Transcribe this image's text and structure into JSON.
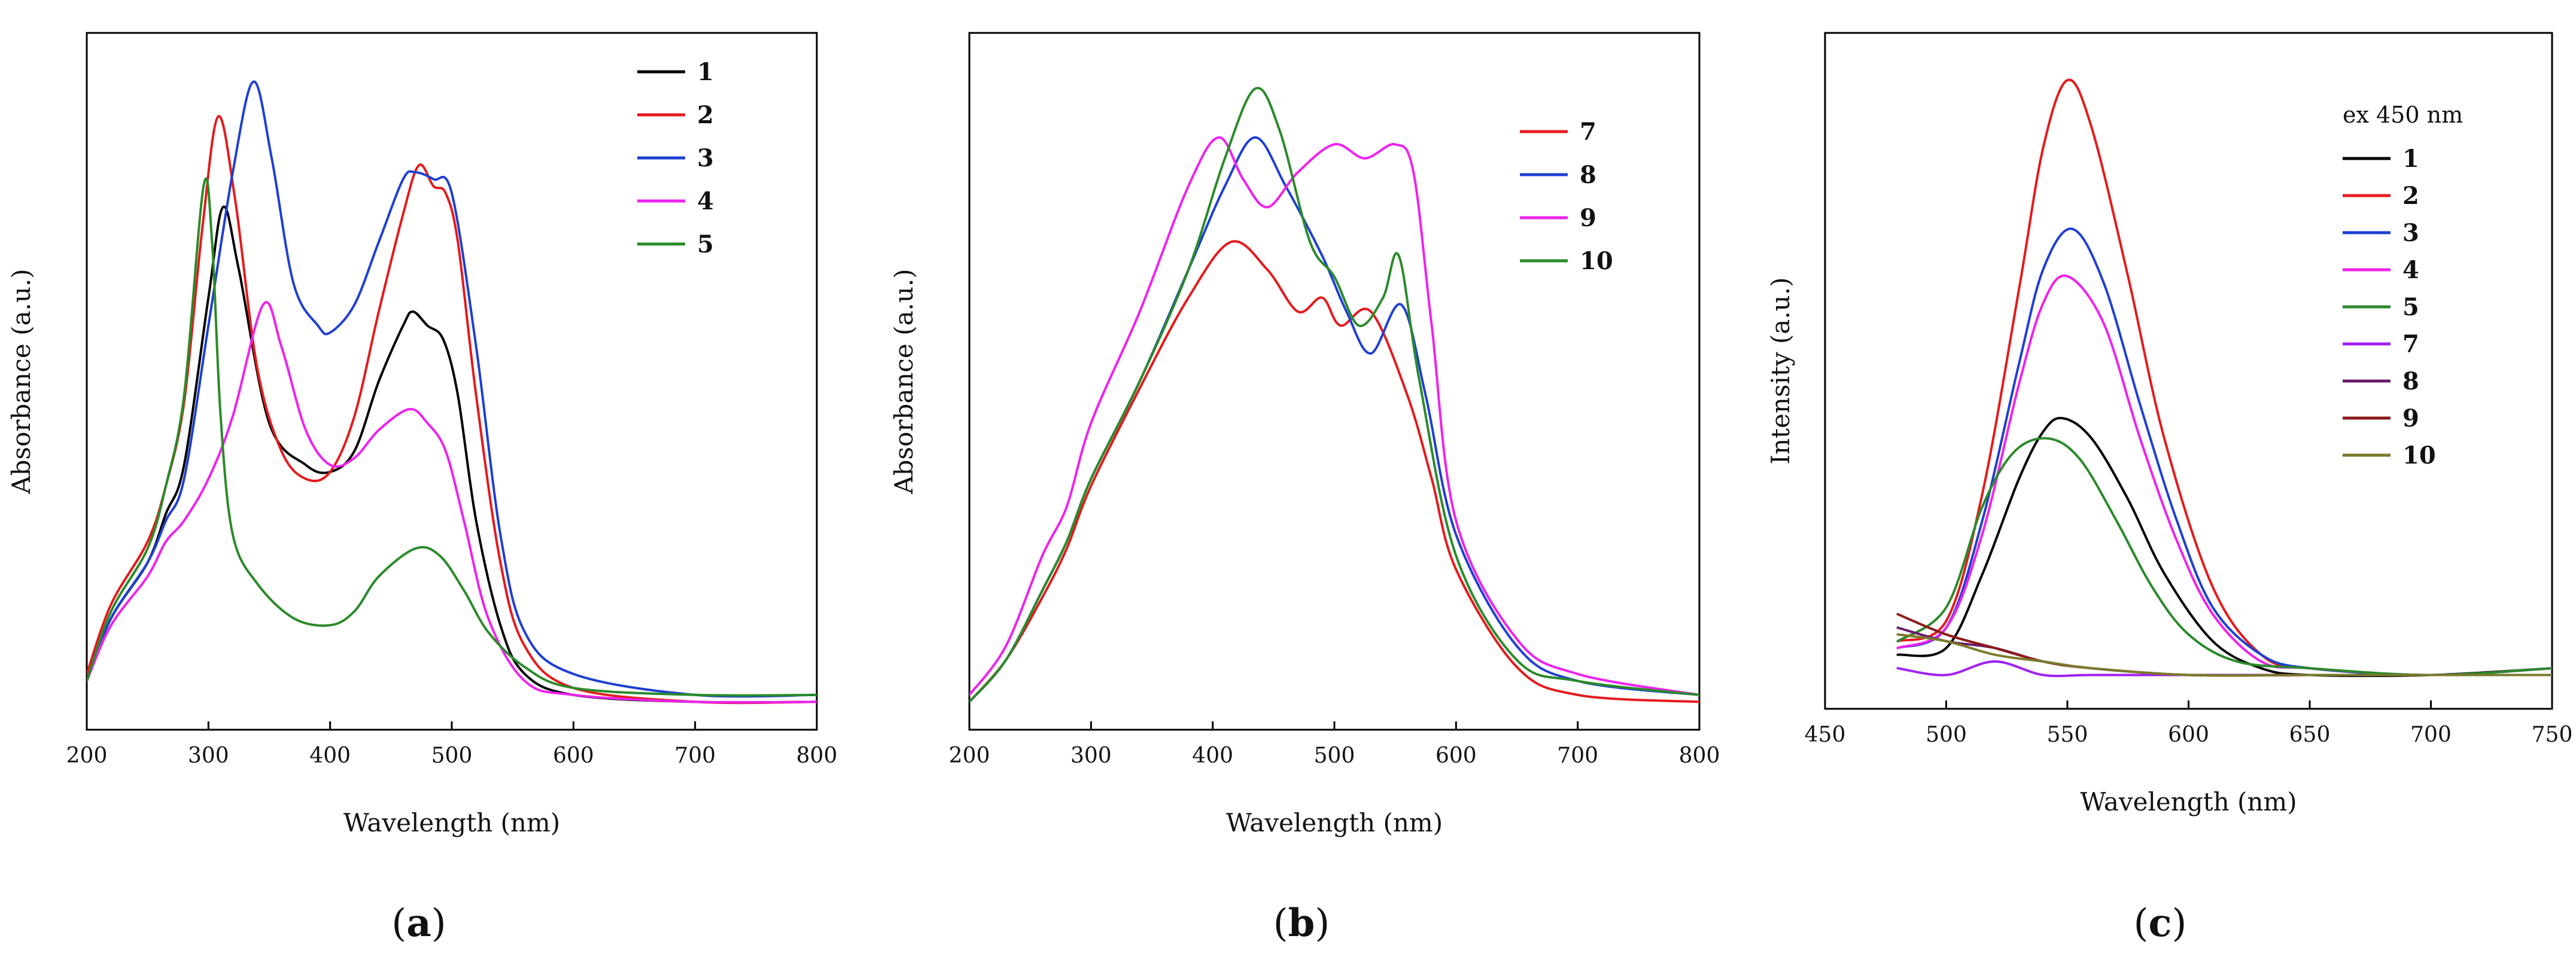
{
  "chart_data": [
    {
      "id": "a",
      "type": "line",
      "panel_label": "a",
      "xlabel": "Wavelength (nm)",
      "ylabel": "Absorbance (a.u.)",
      "xlim": [
        200,
        800
      ],
      "ylim": [
        0,
        1
      ],
      "xticks": [
        200,
        300,
        400,
        500,
        600,
        700,
        800
      ],
      "legend_position": "top-right",
      "series": [
        {
          "name": "1",
          "color": "#000000",
          "x": [
            200,
            220,
            250,
            265,
            280,
            300,
            312,
            325,
            350,
            380,
            400,
            420,
            440,
            460,
            468,
            480,
            493,
            505,
            520,
            540,
            560,
            600,
            700,
            800
          ],
          "y": [
            0.07,
            0.16,
            0.24,
            0.31,
            0.38,
            0.62,
            0.75,
            0.66,
            0.44,
            0.38,
            0.37,
            0.4,
            0.5,
            0.58,
            0.6,
            0.58,
            0.56,
            0.48,
            0.3,
            0.15,
            0.08,
            0.05,
            0.04,
            0.04
          ]
        },
        {
          "name": "2",
          "color": "#e41a1c",
          "x": [
            200,
            220,
            250,
            265,
            280,
            295,
            308,
            322,
            340,
            360,
            380,
            400,
            420,
            440,
            460,
            473,
            485,
            495,
            505,
            520,
            540,
            560,
            600,
            700,
            800
          ],
          "y": [
            0.08,
            0.18,
            0.27,
            0.35,
            0.47,
            0.72,
            0.88,
            0.76,
            0.52,
            0.4,
            0.36,
            0.37,
            0.45,
            0.6,
            0.74,
            0.81,
            0.78,
            0.77,
            0.7,
            0.48,
            0.24,
            0.12,
            0.06,
            0.04,
            0.04
          ]
        },
        {
          "name": "3",
          "color": "#1f3fd1",
          "x": [
            200,
            220,
            250,
            265,
            280,
            300,
            320,
            337,
            352,
            370,
            390,
            400,
            420,
            440,
            460,
            470,
            485,
            500,
            520,
            540,
            560,
            600,
            700,
            800
          ],
          "y": [
            0.07,
            0.16,
            0.24,
            0.3,
            0.36,
            0.58,
            0.8,
            0.93,
            0.82,
            0.64,
            0.58,
            0.57,
            0.61,
            0.7,
            0.79,
            0.8,
            0.79,
            0.77,
            0.55,
            0.28,
            0.14,
            0.08,
            0.05,
            0.05
          ]
        },
        {
          "name": "4",
          "color": "#ee22ee",
          "x": [
            200,
            220,
            250,
            265,
            280,
            300,
            320,
            345,
            360,
            380,
            400,
            420,
            440,
            465,
            480,
            495,
            510,
            530,
            560,
            600,
            700,
            800
          ],
          "y": [
            0.07,
            0.15,
            0.22,
            0.27,
            0.3,
            0.36,
            0.45,
            0.61,
            0.55,
            0.43,
            0.38,
            0.39,
            0.43,
            0.46,
            0.44,
            0.4,
            0.3,
            0.16,
            0.07,
            0.05,
            0.04,
            0.04
          ]
        },
        {
          "name": "5",
          "color": "#2a8a2a",
          "x": [
            200,
            220,
            250,
            265,
            280,
            296,
            303,
            310,
            320,
            340,
            370,
            400,
            420,
            440,
            470,
            490,
            510,
            530,
            560,
            600,
            700,
            800
          ],
          "y": [
            0.07,
            0.17,
            0.26,
            0.35,
            0.48,
            0.78,
            0.7,
            0.45,
            0.28,
            0.21,
            0.16,
            0.15,
            0.17,
            0.22,
            0.26,
            0.25,
            0.2,
            0.14,
            0.09,
            0.06,
            0.05,
            0.05
          ]
        }
      ]
    },
    {
      "id": "b",
      "type": "line",
      "panel_label": "b",
      "xlabel": "Wavelength (nm)",
      "ylabel": "Absorbance (a.u.)",
      "xlim": [
        200,
        800
      ],
      "ylim": [
        0,
        1
      ],
      "xticks": [
        200,
        300,
        400,
        500,
        600,
        700,
        800
      ],
      "legend_position": "top-right",
      "series": [
        {
          "name": "7",
          "color": "#e41a1c",
          "x": [
            200,
            230,
            260,
            280,
            300,
            340,
            380,
            415,
            445,
            470,
            490,
            505,
            530,
            560,
            580,
            600,
            650,
            700,
            800
          ],
          "y": [
            0.04,
            0.1,
            0.19,
            0.26,
            0.35,
            0.49,
            0.62,
            0.7,
            0.66,
            0.6,
            0.62,
            0.58,
            0.6,
            0.48,
            0.36,
            0.23,
            0.09,
            0.05,
            0.04
          ]
        },
        {
          "name": "8",
          "color": "#1f3fd1",
          "x": [
            200,
            230,
            260,
            280,
            300,
            340,
            380,
            410,
            435,
            460,
            490,
            510,
            530,
            555,
            575,
            600,
            650,
            700,
            800
          ],
          "y": [
            0.04,
            0.1,
            0.2,
            0.27,
            0.36,
            0.5,
            0.66,
            0.78,
            0.85,
            0.78,
            0.68,
            0.6,
            0.54,
            0.61,
            0.48,
            0.28,
            0.12,
            0.07,
            0.05
          ]
        },
        {
          "name": "9",
          "color": "#ee22ee",
          "x": [
            200,
            230,
            260,
            280,
            300,
            340,
            380,
            405,
            425,
            445,
            470,
            500,
            525,
            550,
            565,
            580,
            600,
            650,
            700,
            800
          ],
          "y": [
            0.05,
            0.12,
            0.25,
            0.32,
            0.44,
            0.6,
            0.78,
            0.85,
            0.79,
            0.75,
            0.8,
            0.84,
            0.82,
            0.84,
            0.8,
            0.58,
            0.3,
            0.13,
            0.08,
            0.05
          ]
        },
        {
          "name": "10",
          "color": "#2a8a2a",
          "x": [
            200,
            230,
            260,
            280,
            300,
            340,
            380,
            410,
            435,
            455,
            480,
            500,
            520,
            540,
            553,
            570,
            600,
            650,
            700,
            800
          ],
          "y": [
            0.04,
            0.1,
            0.2,
            0.27,
            0.36,
            0.5,
            0.66,
            0.82,
            0.92,
            0.86,
            0.7,
            0.65,
            0.58,
            0.62,
            0.68,
            0.5,
            0.25,
            0.1,
            0.07,
            0.05
          ]
        }
      ]
    },
    {
      "id": "c",
      "type": "line",
      "panel_label": "c",
      "xlabel": "Wavelength (nm)",
      "ylabel": "Intensity (a.u.)",
      "legend_title": "ex 450 nm",
      "xlim": [
        450,
        750
      ],
      "ylim": [
        0,
        1
      ],
      "xticks": [
        450,
        500,
        550,
        600,
        650,
        700,
        750
      ],
      "legend_position": "top-right",
      "series": [
        {
          "name": "1",
          "color": "#000000",
          "x": [
            480,
            500,
            515,
            530,
            540,
            548,
            560,
            575,
            590,
            610,
            630,
            650,
            700,
            750
          ],
          "y": [
            0.08,
            0.09,
            0.2,
            0.34,
            0.41,
            0.43,
            0.4,
            0.31,
            0.2,
            0.1,
            0.06,
            0.05,
            0.05,
            0.06
          ]
        },
        {
          "name": "2",
          "color": "#e41a1c",
          "x": [
            480,
            500,
            515,
            530,
            540,
            550,
            560,
            575,
            590,
            610,
            630,
            650,
            700,
            750
          ],
          "y": [
            0.1,
            0.13,
            0.32,
            0.62,
            0.83,
            0.93,
            0.86,
            0.64,
            0.4,
            0.18,
            0.08,
            0.06,
            0.05,
            0.06
          ]
        },
        {
          "name": "3",
          "color": "#1f3fd1",
          "x": [
            480,
            500,
            515,
            530,
            540,
            552,
            565,
            580,
            595,
            610,
            630,
            650,
            700,
            750
          ],
          "y": [
            0.09,
            0.12,
            0.28,
            0.51,
            0.65,
            0.71,
            0.63,
            0.45,
            0.28,
            0.15,
            0.08,
            0.06,
            0.05,
            0.06
          ]
        },
        {
          "name": "4",
          "color": "#ee22ee",
          "x": [
            480,
            500,
            515,
            530,
            540,
            550,
            565,
            580,
            595,
            610,
            630,
            650,
            700,
            750
          ],
          "y": [
            0.09,
            0.12,
            0.26,
            0.48,
            0.6,
            0.64,
            0.57,
            0.4,
            0.25,
            0.14,
            0.07,
            0.06,
            0.05,
            0.06
          ]
        },
        {
          "name": "5",
          "color": "#2a8a2a",
          "x": [
            480,
            500,
            515,
            528,
            542,
            555,
            570,
            585,
            600,
            620,
            650,
            700,
            750
          ],
          "y": [
            0.1,
            0.15,
            0.3,
            0.38,
            0.4,
            0.37,
            0.28,
            0.18,
            0.11,
            0.07,
            0.06,
            0.05,
            0.06
          ]
        },
        {
          "name": "7",
          "color": "#a020f0",
          "x": [
            480,
            500,
            520,
            540,
            560,
            600,
            650,
            700,
            750
          ],
          "y": [
            0.06,
            0.05,
            0.07,
            0.05,
            0.05,
            0.05,
            0.05,
            0.05,
            0.05
          ]
        },
        {
          "name": "8",
          "color": "#6a1b6a",
          "x": [
            480,
            500,
            520,
            540,
            560,
            600,
            650,
            700,
            750
          ],
          "y": [
            0.12,
            0.1,
            0.09,
            0.07,
            0.06,
            0.05,
            0.05,
            0.05,
            0.05
          ]
        },
        {
          "name": "9",
          "color": "#8b1a1a",
          "x": [
            480,
            500,
            520,
            540,
            560,
            600,
            650,
            700,
            750
          ],
          "y": [
            0.14,
            0.11,
            0.09,
            0.07,
            0.06,
            0.05,
            0.05,
            0.05,
            0.05
          ]
        },
        {
          "name": "10",
          "color": "#7a7a2a",
          "x": [
            480,
            500,
            520,
            540,
            560,
            600,
            650,
            700,
            750
          ],
          "y": [
            0.11,
            0.1,
            0.08,
            0.07,
            0.06,
            0.05,
            0.05,
            0.05,
            0.05
          ]
        }
      ]
    }
  ]
}
